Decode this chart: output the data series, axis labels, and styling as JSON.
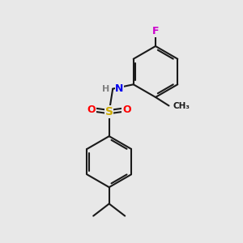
{
  "background_color": "#e8e8e8",
  "bond_color": "#1a1a1a",
  "bond_width": 1.5,
  "atom_colors": {
    "F": "#cc00cc",
    "N": "#0000ee",
    "H": "#808080",
    "S": "#ccaa00",
    "O": "#ff0000",
    "C": "#1a1a1a"
  },
  "figsize": [
    3.0,
    3.0
  ],
  "dpi": 100,
  "xlim": [
    0,
    10
  ],
  "ylim": [
    0,
    10
  ]
}
